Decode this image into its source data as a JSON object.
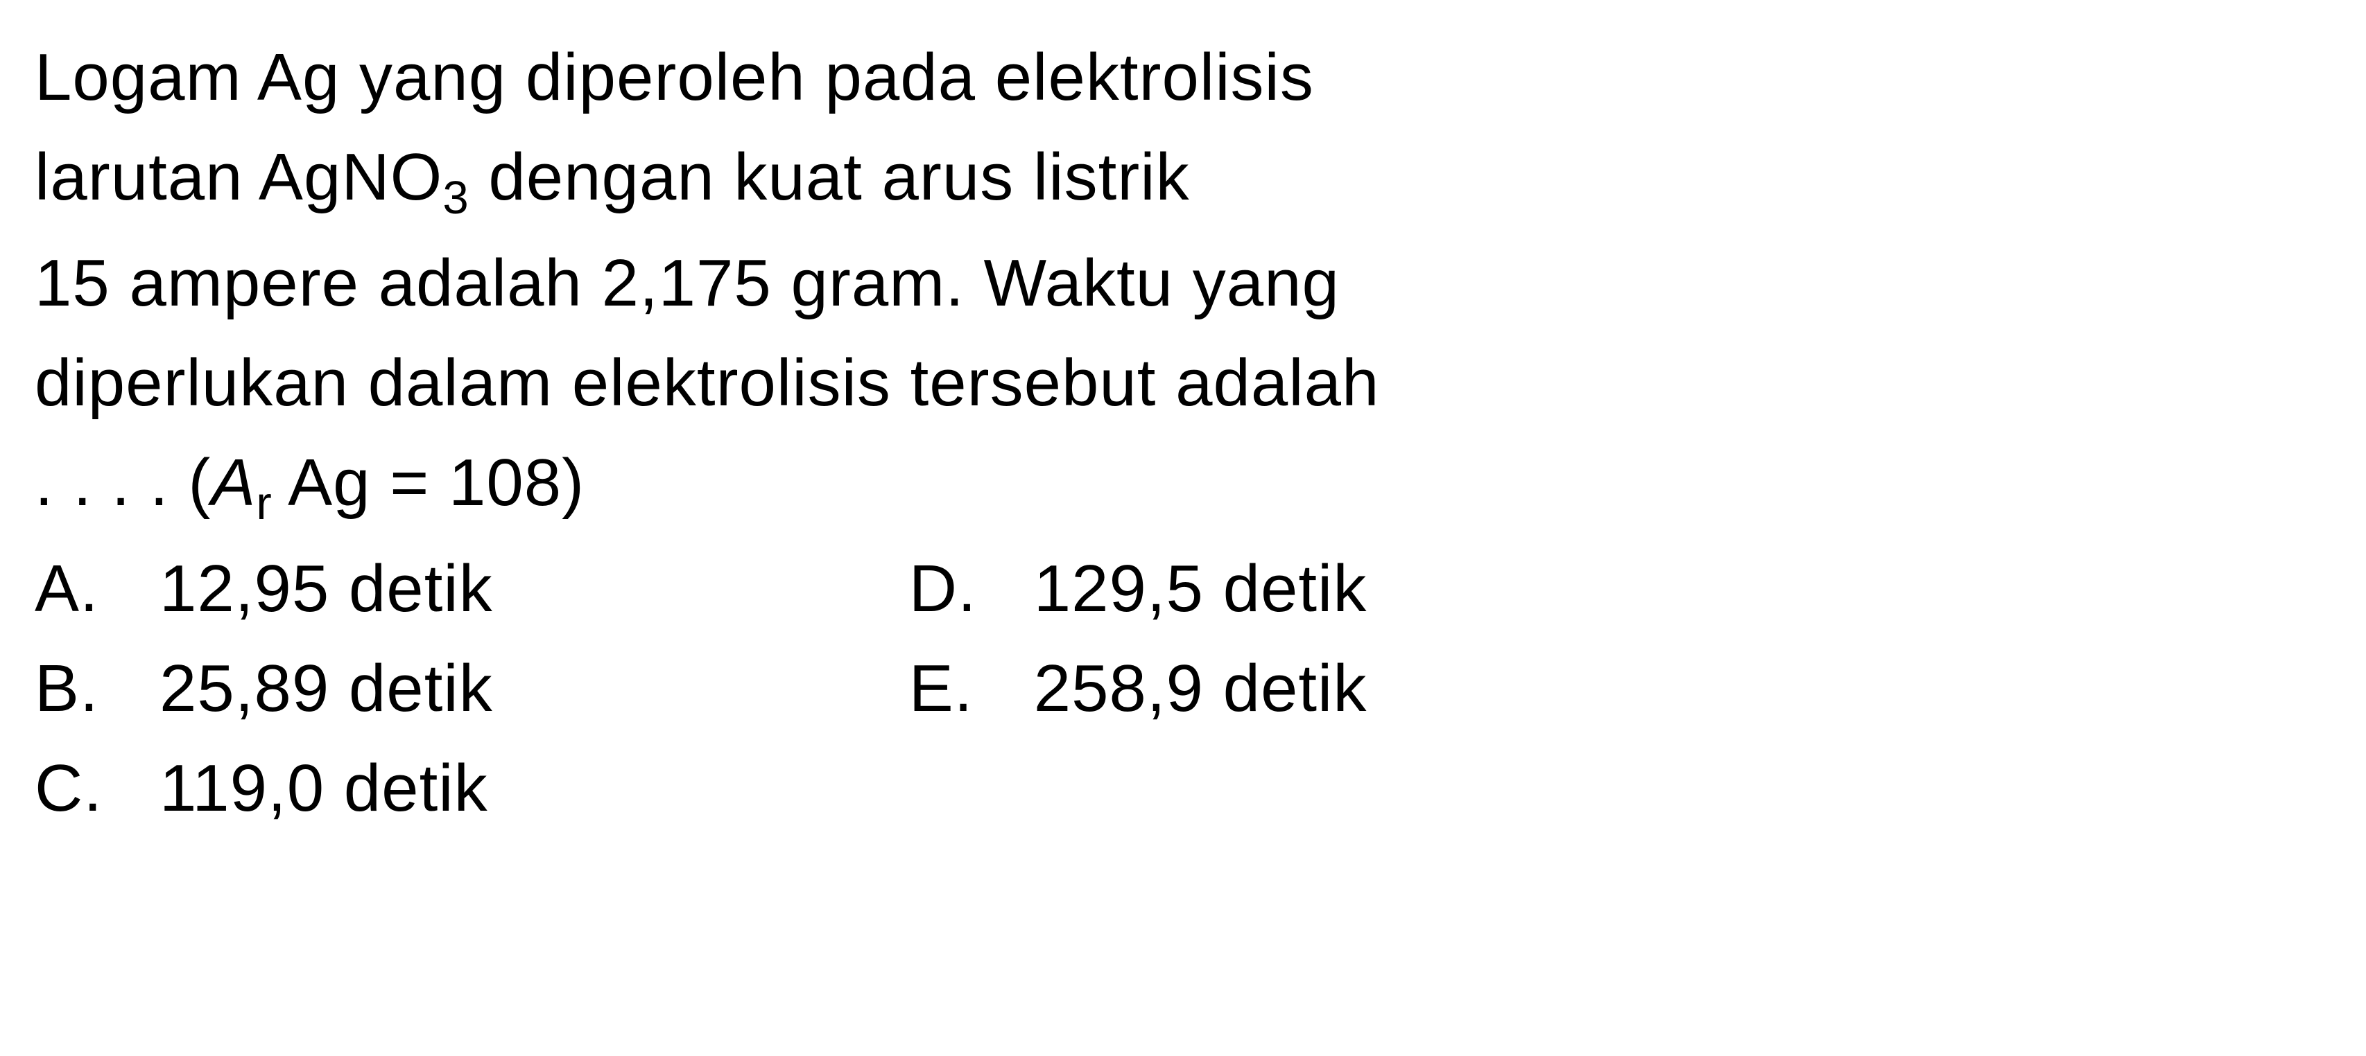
{
  "question": {
    "line1_part1": "Logam Ag yang diperoleh pada elektrolisis",
    "line2_part1": "larutan AgNO",
    "line2_sub": "3",
    "line2_part2": " dengan kuat arus listrik",
    "line3": "15 ampere adalah 2,175 gram. Waktu yang",
    "line4": "diperlukan dalam elektrolisis tersebut adalah",
    "line5_dots": ". . . . (",
    "line5_ar_a": "A",
    "line5_ar_r": "r",
    "line5_rest": " Ag = 108)"
  },
  "options": {
    "a": {
      "letter": "A.",
      "text": "12,95 detik"
    },
    "b": {
      "letter": "B.",
      "text": "25,89 detik"
    },
    "c": {
      "letter": "C.",
      "text": "119,0 detik"
    },
    "d": {
      "letter": "D.",
      "text": "129,5 detik"
    },
    "e": {
      "letter": "E.",
      "text": "258,9 detik"
    }
  },
  "styling": {
    "font_size": 96,
    "line_height": 1.5,
    "text_color": "#000000",
    "background_color": "#ffffff",
    "option_letter_width": 180,
    "column_gap": 600
  }
}
